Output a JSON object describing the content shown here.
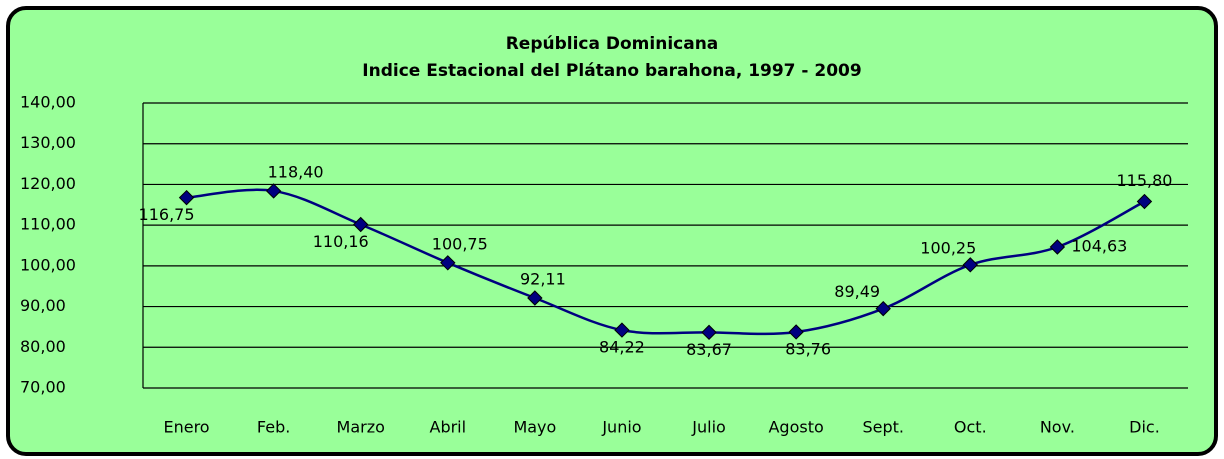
{
  "chart_data": {
    "type": "line",
    "title": "República Dominicana",
    "subtitle": "Indice  Estacional del  Plátano barahona, 1997 - 2009",
    "categories": [
      "Enero",
      "Feb.",
      "Marzo",
      "Abril",
      "Mayo",
      "Junio",
      "Julio",
      "Agosto",
      "Sept.",
      "Oct.",
      "Nov.",
      "Dic."
    ],
    "values": [
      116.75,
      118.4,
      110.16,
      100.75,
      92.11,
      84.22,
      83.67,
      83.76,
      89.49,
      100.25,
      104.63,
      115.8
    ],
    "value_labels": [
      "116,75",
      "118,40",
      "110,16",
      "100,75",
      "92,11",
      "84,22",
      "83,67",
      "83,76",
      "89,49",
      "100,25",
      "104,63",
      "115,80"
    ],
    "color": "#000080",
    "ylim": [
      70,
      140
    ],
    "yticks": [
      {
        "value": 70,
        "label": "70,00"
      },
      {
        "value": 80,
        "label": "80,00"
      },
      {
        "value": 90,
        "label": "90,00"
      },
      {
        "value": 100,
        "label": "100,00"
      },
      {
        "value": 110,
        "label": "110,00"
      },
      {
        "value": 120,
        "label": "120,00"
      },
      {
        "value": 130,
        "label": "130,00"
      },
      {
        "value": 140,
        "label": "140,00"
      }
    ],
    "grid": true
  }
}
